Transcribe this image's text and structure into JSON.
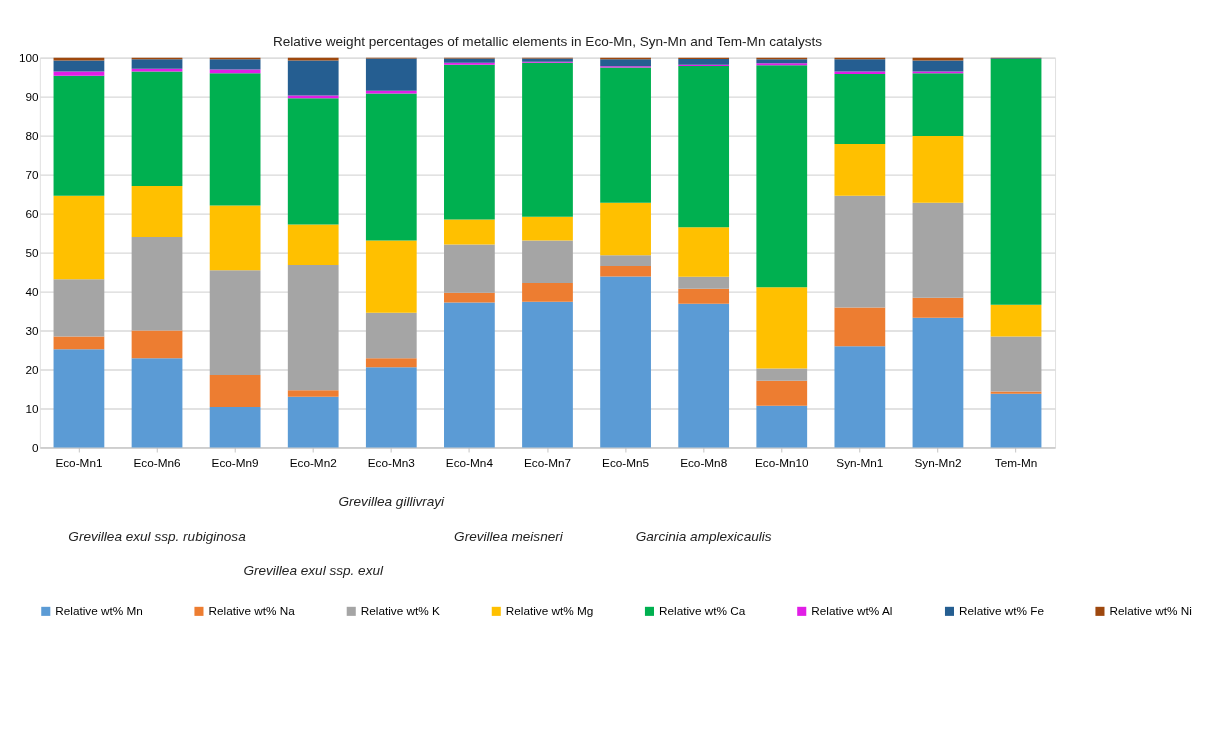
{
  "chart_data": {
    "type": "bar",
    "stacked": true,
    "title": "Relative weight percentages of metallic elements in Eco-Mn, Syn-Mn and Tem-Mn catalysts",
    "categories": [
      "Eco-Mn1",
      "Eco-Mn6",
      "Eco-Mn9",
      "Eco-Mn2",
      "Eco-Mn3",
      "Eco-Mn4",
      "Eco-Mn7",
      "Eco-Mn5",
      "Eco-Mn8",
      "Eco-Mn10",
      "Syn-Mn1",
      "Syn-Mn2",
      "Tem-Mn"
    ],
    "series": [
      {
        "name": "Relative wt% Mn",
        "color": "#5b9bd5",
        "values": [
          25.2,
          22.9,
          10.4,
          13.0,
          20.6,
          37.2,
          37.4,
          43.9,
          36.9,
          10.7,
          26.0,
          33.3,
          13.8
        ]
      },
      {
        "name": "Relative wt% Na",
        "color": "#ed7d31",
        "values": [
          3.3,
          7.1,
          8.2,
          1.7,
          2.3,
          2.5,
          4.8,
          2.7,
          3.8,
          6.4,
          9.9,
          5.1,
          0.6
        ]
      },
      {
        "name": "Relative wt% K",
        "color": "#a5a5a5",
        "values": [
          14.7,
          24.0,
          26.9,
          32.1,
          11.7,
          12.4,
          10.9,
          2.7,
          3.1,
          3.2,
          28.7,
          24.4,
          14.1
        ]
      },
      {
        "name": "Relative wt% Mg",
        "color": "#ffc000",
        "values": [
          21.4,
          13.1,
          16.6,
          10.4,
          18.5,
          6.4,
          6.1,
          13.5,
          12.7,
          20.8,
          13.3,
          17.1,
          8.1
        ]
      },
      {
        "name": "Relative wt% Ca",
        "color": "#00b050",
        "values": [
          30.8,
          29.4,
          33.9,
          32.4,
          37.7,
          39.7,
          39.5,
          34.7,
          41.4,
          57.0,
          17.9,
          16.1,
          63.1
        ]
      },
      {
        "name": "Relative wt% Al",
        "color": "#e11ee6",
        "values": [
          1.1,
          0.7,
          1.0,
          0.7,
          0.7,
          0.5,
          0.3,
          0.3,
          0.3,
          0.5,
          0.7,
          0.5,
          0.0
        ]
      },
      {
        "name": "Relative wt% Fe",
        "color": "#255e91",
        "values": [
          2.8,
          2.4,
          2.6,
          9.0,
          8.3,
          1.1,
          0.8,
          1.8,
          1.5,
          1.0,
          3.1,
          2.8,
          0.2
        ]
      },
      {
        "name": "Relative wt% Ni",
        "color": "#9e480e",
        "values": [
          0.7,
          0.4,
          0.4,
          0.7,
          0.2,
          0.2,
          0.2,
          0.4,
          0.3,
          0.4,
          0.4,
          0.7,
          0.1
        ]
      }
    ],
    "ylim": [
      0,
      100
    ],
    "yticks": [
      0,
      10,
      20,
      30,
      40,
      50,
      60,
      70,
      80,
      90,
      100
    ],
    "grid": "y",
    "legend": "bottom",
    "annotations": [
      "Grevillea exul ssp. rubiginosa",
      "Grevillea exul ssp. exul",
      "Grevillea gillivrayi",
      "Grevillea meisneri",
      "Garcinia amplexicaulis"
    ]
  }
}
